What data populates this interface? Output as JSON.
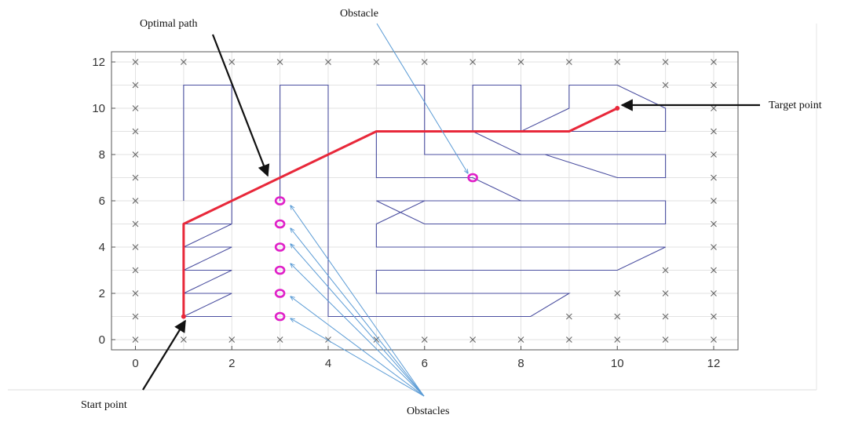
{
  "figure": {
    "labels": {
      "optimal_path": "Optimal path",
      "obstacle": "Obstacle",
      "target_point": "Target point",
      "start_point": "Start point",
      "obstacles": "Obstacles"
    }
  },
  "chart_data": {
    "type": "scatter",
    "xlim": [
      -0.5,
      12.5
    ],
    "ylim": [
      -0.3,
      12.3
    ],
    "x_ticks": [
      "0",
      "2",
      "4",
      "6",
      "8",
      "10",
      "12"
    ],
    "y_ticks": [
      "0",
      "2",
      "4",
      "6",
      "8",
      "10",
      "12"
    ],
    "grid": true,
    "colors": {
      "path": "#e8283a",
      "obstacle": "#e020c8",
      "walls": "#4b4fa0",
      "markers": "#666666",
      "arrow_dark": "#111111",
      "arrow_blue": "#5a9bd5"
    },
    "start_point": [
      1,
      1
    ],
    "target_point": [
      10,
      10
    ],
    "optimal_path": [
      [
        1,
        1
      ],
      [
        1,
        5
      ],
      [
        5,
        9
      ],
      [
        9,
        9
      ],
      [
        10,
        10
      ]
    ],
    "obstacles": [
      [
        3,
        1
      ],
      [
        3,
        2
      ],
      [
        3,
        3
      ],
      [
        3,
        4
      ],
      [
        3,
        5
      ],
      [
        3,
        6
      ],
      [
        7,
        7
      ]
    ],
    "walls": [
      [
        [
          1,
          6
        ],
        [
          1,
          11
        ],
        [
          2,
          11
        ],
        [
          2,
          5
        ]
      ],
      [
        [
          1,
          5
        ],
        [
          2,
          5
        ],
        [
          1,
          4
        ],
        [
          2,
          4
        ],
        [
          1,
          3
        ],
        [
          2,
          3
        ],
        [
          1,
          2
        ],
        [
          2,
          2
        ],
        [
          1,
          1
        ],
        [
          2,
          1
        ]
      ],
      [
        [
          3,
          6
        ],
        [
          3,
          11
        ],
        [
          4,
          11
        ],
        [
          4,
          1
        ],
        [
          8.2,
          1
        ],
        [
          9,
          2
        ],
        [
          5,
          2
        ],
        [
          5,
          3
        ],
        [
          10,
          3
        ],
        [
          11,
          4
        ],
        [
          5,
          4
        ],
        [
          5,
          5
        ],
        [
          6,
          6
        ],
        [
          11,
          6
        ],
        [
          11,
          5
        ],
        [
          6,
          5
        ],
        [
          5,
          6
        ],
        [
          6,
          6
        ]
      ],
      [
        [
          5,
          11
        ],
        [
          6,
          11
        ],
        [
          6,
          8
        ],
        [
          8.5,
          8
        ],
        [
          10,
          7
        ],
        [
          11,
          7
        ],
        [
          11,
          8
        ],
        [
          8,
          8
        ],
        [
          7,
          9
        ],
        [
          11,
          9
        ],
        [
          11,
          10
        ],
        [
          10,
          11
        ],
        [
          9,
          11
        ],
        [
          9,
          10
        ],
        [
          8,
          9
        ],
        [
          7,
          9
        ],
        [
          7,
          11
        ],
        [
          8,
          11
        ],
        [
          8,
          9
        ]
      ],
      [
        [
          5,
          9
        ],
        [
          5,
          7
        ],
        [
          7,
          7
        ],
        [
          8,
          6
        ],
        [
          11,
          6
        ]
      ]
    ],
    "cross_markers": [
      [
        0,
        0
      ],
      [
        0,
        1
      ],
      [
        0,
        2
      ],
      [
        0,
        3
      ],
      [
        0,
        4
      ],
      [
        0,
        5
      ],
      [
        0,
        6
      ],
      [
        0,
        7
      ],
      [
        0,
        8
      ],
      [
        0,
        9
      ],
      [
        0,
        10
      ],
      [
        0,
        11
      ],
      [
        0,
        12
      ],
      [
        1,
        0
      ],
      [
        1,
        12
      ],
      [
        2,
        0
      ],
      [
        2,
        12
      ],
      [
        3,
        0
      ],
      [
        3,
        12
      ],
      [
        4,
        0
      ],
      [
        4,
        12
      ],
      [
        5,
        0
      ],
      [
        5,
        12
      ],
      [
        6,
        0
      ],
      [
        6,
        12
      ],
      [
        7,
        0
      ],
      [
        7,
        12
      ],
      [
        8,
        0
      ],
      [
        8,
        12
      ],
      [
        9,
        0
      ],
      [
        9,
        1
      ],
      [
        9,
        12
      ],
      [
        10,
        0
      ],
      [
        10,
        1
      ],
      [
        10,
        2
      ],
      [
        10,
        12
      ],
      [
        11,
        0
      ],
      [
        11,
        1
      ],
      [
        11,
        2
      ],
      [
        11,
        3
      ],
      [
        11,
        11
      ],
      [
        11,
        12
      ],
      [
        12,
        0
      ],
      [
        12,
        1
      ],
      [
        12,
        2
      ],
      [
        12,
        3
      ],
      [
        12,
        4
      ],
      [
        12,
        5
      ],
      [
        12,
        6
      ],
      [
        12,
        7
      ],
      [
        12,
        8
      ],
      [
        12,
        9
      ],
      [
        12,
        10
      ],
      [
        12,
        11
      ],
      [
        12,
        12
      ]
    ]
  }
}
